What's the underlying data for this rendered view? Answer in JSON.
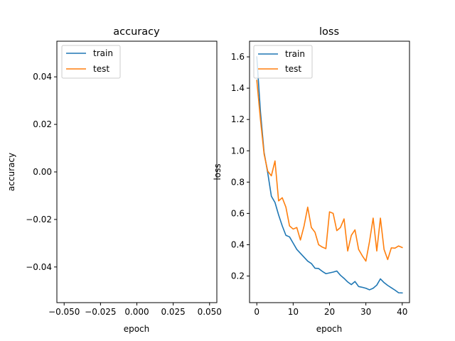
{
  "colors": {
    "train": "#1f77b4",
    "test": "#ff7f0e"
  },
  "chart_data": [
    {
      "type": "line",
      "title": "accuracy",
      "xlabel": "epoch",
      "ylabel": "accuracy",
      "xlim": [
        -0.055,
        0.055
      ],
      "ylim": [
        -0.055,
        0.055
      ],
      "xticks": [
        -0.05,
        -0.025,
        0,
        0.025,
        0.05
      ],
      "xtick_labels": [
        "−0.050",
        "−0.025",
        "0.000",
        "0.025",
        "0.050"
      ],
      "yticks": [
        -0.04,
        -0.02,
        0,
        0.02,
        0.04
      ],
      "ytick_labels": [
        "−0.04",
        "−0.02",
        "0.00",
        "0.02",
        "0.04"
      ],
      "legend": "upper-left",
      "grid": false,
      "series": [
        {
          "name": "train",
          "x": [],
          "y": []
        },
        {
          "name": "test",
          "x": [],
          "y": []
        }
      ]
    },
    {
      "type": "line",
      "title": "loss",
      "xlabel": "epoch",
      "ylabel": "loss",
      "xlim": [
        -2,
        42
      ],
      "ylim": [
        0.03,
        1.7
      ],
      "xticks": [
        0,
        10,
        20,
        30,
        40
      ],
      "xtick_labels": [
        "0",
        "10",
        "20",
        "30",
        "40"
      ],
      "yticks": [
        0.2,
        0.4,
        0.6,
        0.8,
        1.0,
        1.2,
        1.4,
        1.6
      ],
      "ytick_labels": [
        "0.2",
        "0.4",
        "0.6",
        "0.8",
        "1.0",
        "1.2",
        "1.4",
        "1.6"
      ],
      "legend": "upper-left",
      "grid": false,
      "series": [
        {
          "name": "train",
          "x": [
            0,
            1,
            2,
            3,
            4,
            5,
            6,
            7,
            8,
            9,
            10,
            11,
            12,
            13,
            14,
            15,
            16,
            17,
            18,
            19,
            20,
            21,
            22,
            23,
            24,
            25,
            26,
            27,
            28,
            29,
            30,
            31,
            32,
            33,
            34,
            35,
            36,
            37,
            38,
            39,
            40
          ],
          "y": [
            1.6,
            1.25,
            0.99,
            0.86,
            0.71,
            0.67,
            0.59,
            0.52,
            0.46,
            0.45,
            0.41,
            0.37,
            0.345,
            0.32,
            0.295,
            0.28,
            0.25,
            0.248,
            0.23,
            0.215,
            0.22,
            0.225,
            0.232,
            0.205,
            0.185,
            0.162,
            0.145,
            0.165,
            0.133,
            0.128,
            0.122,
            0.112,
            0.122,
            0.142,
            0.182,
            0.158,
            0.14,
            0.125,
            0.11,
            0.093,
            0.092
          ]
        },
        {
          "name": "test",
          "x": [
            0,
            1,
            2,
            3,
            4,
            5,
            6,
            7,
            8,
            9,
            10,
            11,
            12,
            13,
            14,
            15,
            16,
            17,
            18,
            19,
            20,
            21,
            22,
            23,
            24,
            25,
            26,
            27,
            28,
            29,
            30,
            31,
            32,
            33,
            34,
            35,
            36,
            37,
            38,
            39,
            40
          ],
          "y": [
            1.45,
            1.2,
            0.98,
            0.87,
            0.84,
            0.935,
            0.68,
            0.7,
            0.64,
            0.52,
            0.5,
            0.51,
            0.43,
            0.52,
            0.64,
            0.51,
            0.48,
            0.4,
            0.385,
            0.375,
            0.61,
            0.6,
            0.49,
            0.51,
            0.565,
            0.36,
            0.46,
            0.495,
            0.37,
            0.33,
            0.295,
            0.42,
            0.57,
            0.36,
            0.57,
            0.37,
            0.305,
            0.38,
            0.378,
            0.392,
            0.382
          ]
        }
      ]
    }
  ]
}
